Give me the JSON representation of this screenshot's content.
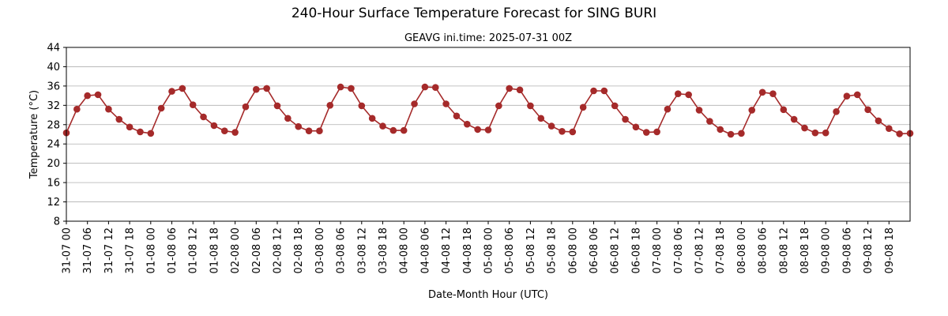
{
  "chart_data": {
    "type": "line",
    "title": "240-Hour Surface Temperature Forecast for SING BURI",
    "subtitle": "GEAVG ini.time: 2025-07-31 00Z",
    "xlabel": "Date-Month Hour (UTC)",
    "ylabel": "Temperature (°C)",
    "ylim": [
      8,
      44
    ],
    "yticks": [
      8,
      12,
      16,
      20,
      24,
      28,
      32,
      36,
      40,
      44
    ],
    "grid": "horizontal",
    "xtick_labels": [
      "31-07 00",
      "31-07 06",
      "31-07 12",
      "31-07 18",
      "01-08 00",
      "01-08 06",
      "01-08 12",
      "01-08 18",
      "02-08 00",
      "02-08 06",
      "02-08 12",
      "02-08 18",
      "03-08 00",
      "03-08 06",
      "03-08 12",
      "03-08 18",
      "04-08 00",
      "04-08 06",
      "04-08 12",
      "04-08 18",
      "05-08 00",
      "05-08 06",
      "05-08 12",
      "05-08 18",
      "06-08 00",
      "06-08 06",
      "06-08 12",
      "06-08 18",
      "07-08 00",
      "07-08 06",
      "07-08 12",
      "07-08 18",
      "08-08 00",
      "08-08 06",
      "08-08 12",
      "08-08 18",
      "09-08 00",
      "09-08 06",
      "09-08 12",
      "09-08 18"
    ],
    "x": [
      "31-07 00",
      "31-07 03",
      "31-07 06",
      "31-07 09",
      "31-07 12",
      "31-07 15",
      "31-07 18",
      "31-07 21",
      "01-08 00",
      "01-08 03",
      "01-08 06",
      "01-08 09",
      "01-08 12",
      "01-08 15",
      "01-08 18",
      "01-08 21",
      "02-08 00",
      "02-08 03",
      "02-08 06",
      "02-08 09",
      "02-08 12",
      "02-08 15",
      "02-08 18",
      "02-08 21",
      "03-08 00",
      "03-08 03",
      "03-08 06",
      "03-08 09",
      "03-08 12",
      "03-08 15",
      "03-08 18",
      "03-08 21",
      "04-08 00",
      "04-08 03",
      "04-08 06",
      "04-08 09",
      "04-08 12",
      "04-08 15",
      "04-08 18",
      "04-08 21",
      "05-08 00",
      "05-08 03",
      "05-08 06",
      "05-08 09",
      "05-08 12",
      "05-08 15",
      "05-08 18",
      "05-08 21",
      "06-08 00",
      "06-08 03",
      "06-08 06",
      "06-08 09",
      "06-08 12",
      "06-08 15",
      "06-08 18",
      "06-08 21",
      "07-08 00",
      "07-08 03",
      "07-08 06",
      "07-08 09",
      "07-08 12",
      "07-08 15",
      "07-08 18",
      "07-08 21",
      "08-08 00",
      "08-08 03",
      "08-08 06",
      "08-08 09",
      "08-08 12",
      "08-08 15",
      "08-08 18",
      "08-08 21",
      "09-08 00",
      "09-08 03",
      "09-08 06",
      "09-08 09",
      "09-08 12",
      "09-08 15",
      "09-08 18",
      "09-08 21",
      "10-08 00"
    ],
    "series": [
      {
        "color": "#a52a2a",
        "values": [
          26.3,
          31.2,
          34.0,
          34.2,
          31.2,
          29.1,
          27.5,
          26.5,
          26.2,
          31.4,
          34.9,
          35.5,
          32.1,
          29.6,
          27.8,
          26.7,
          26.4,
          31.7,
          35.3,
          35.5,
          31.9,
          29.3,
          27.6,
          26.7,
          26.7,
          32.0,
          35.8,
          35.5,
          31.9,
          29.3,
          27.7,
          26.8,
          26.8,
          32.3,
          35.8,
          35.7,
          32.3,
          29.8,
          28.1,
          27.0,
          26.9,
          31.9,
          35.5,
          35.2,
          31.9,
          29.3,
          27.7,
          26.6,
          26.5,
          31.6,
          35.0,
          35.0,
          31.9,
          29.1,
          27.5,
          26.4,
          26.5,
          31.2,
          34.4,
          34.2,
          31.0,
          28.7,
          27.0,
          26.0,
          26.2,
          31.0,
          34.7,
          34.4,
          31.1,
          29.1,
          27.3,
          26.3,
          26.3,
          30.7,
          33.9,
          34.2,
          31.1,
          28.8,
          27.2,
          26.1,
          26.2
        ]
      }
    ]
  }
}
